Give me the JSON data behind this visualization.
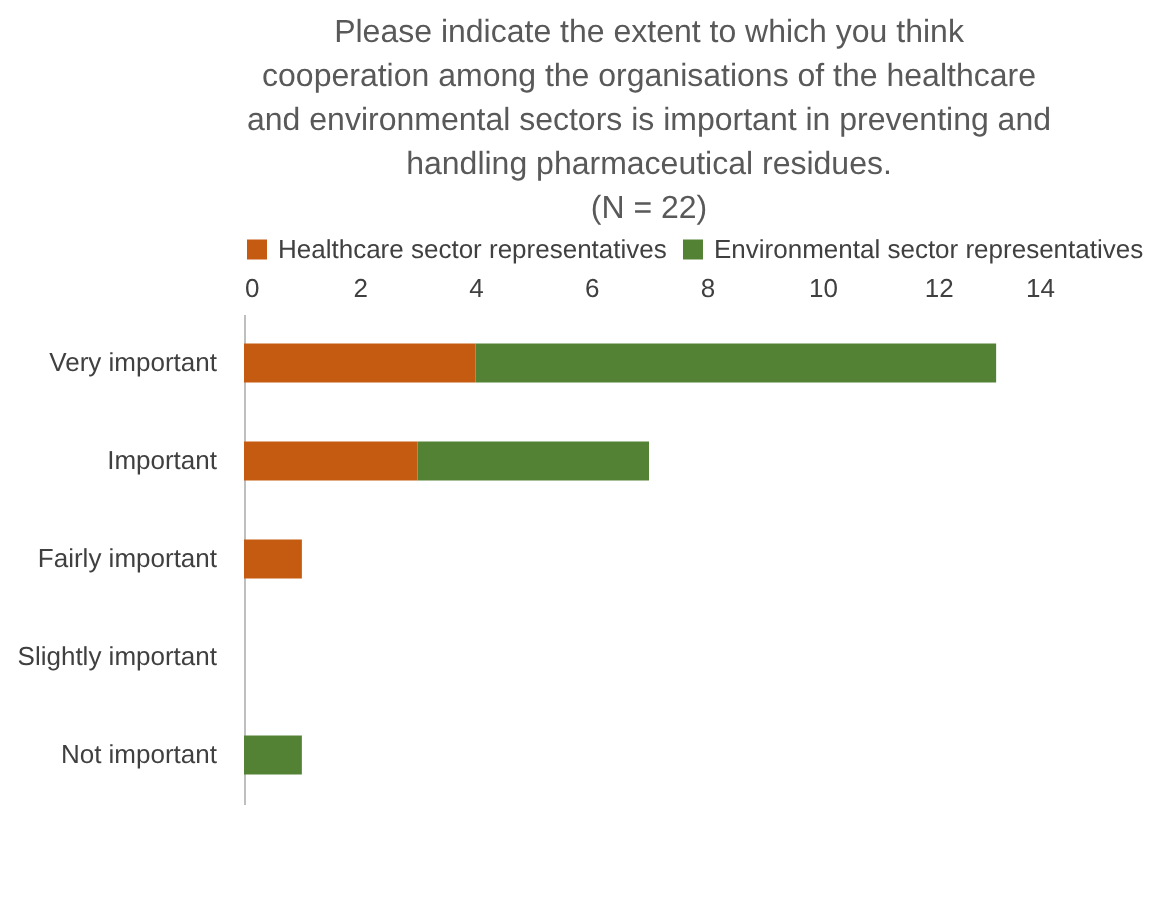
{
  "chart_data": {
    "type": "bar",
    "orientation": "horizontal",
    "stacked": true,
    "title": "Please indicate the extent to which you think cooperation among the organisations of the healthcare and environmental sectors is important in preventing and handling pharmaceutical residues.",
    "subtitle": "(N = 22)",
    "categories": [
      "Very important",
      "Important",
      "Fairly important",
      "Slightly important",
      "Not important"
    ],
    "series": [
      {
        "name": "Healthcare sector representatives",
        "color": "#c55a11",
        "values": [
          4,
          3,
          1,
          0,
          0
        ]
      },
      {
        "name": "Environmental sector representatives",
        "color": "#548235",
        "values": [
          9,
          4,
          0,
          0,
          1
        ]
      }
    ],
    "xlim": [
      0,
      14
    ],
    "xticks": [
      0,
      2,
      4,
      6,
      8,
      10,
      12,
      14
    ],
    "grid": false,
    "legend": "top"
  }
}
